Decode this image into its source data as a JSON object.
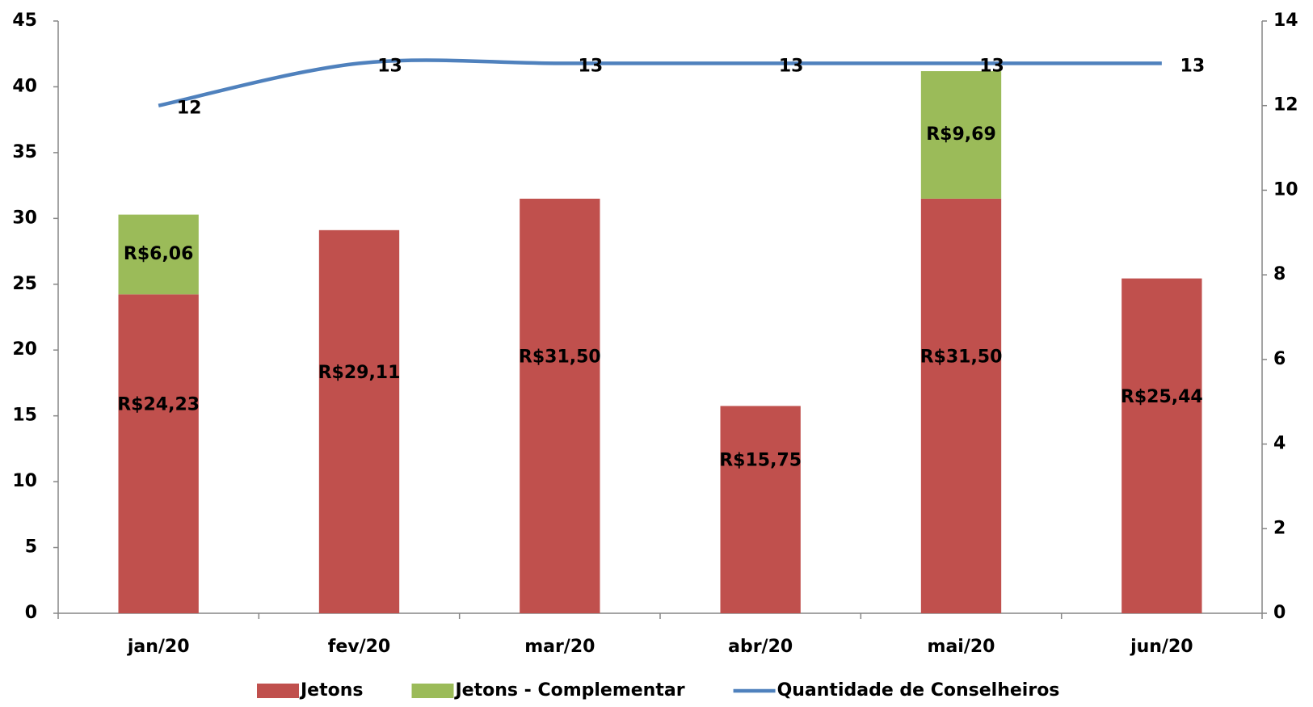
{
  "chart_data": {
    "type": "bar_line",
    "categories": [
      "jan/20",
      "fev/20",
      "mar/20",
      "abr/20",
      "mai/20",
      "jun/20"
    ],
    "series": [
      {
        "name": "Jetons",
        "color": "#c0504d",
        "kind": "bar",
        "values": [
          24.23,
          29.11,
          31.5,
          15.75,
          31.5,
          25.44
        ],
        "value_labels": [
          "R$24,23",
          "R$29,11",
          "R$31,50",
          "R$15,75",
          "R$31,50",
          "R$25,44"
        ]
      },
      {
        "name": "Jetons - Complementar",
        "color": "#9bbb59",
        "kind": "bar",
        "values": [
          6.06,
          null,
          null,
          null,
          9.69,
          null
        ],
        "value_labels": [
          "R$6,06",
          null,
          null,
          null,
          "R$9,69",
          null
        ]
      },
      {
        "name": "Quantidade de Conselheiros",
        "color": "#4f81bd",
        "kind": "line",
        "axis": "y2",
        "values": [
          12,
          13,
          13,
          13,
          13,
          13
        ]
      }
    ],
    "ylim": [
      0,
      45
    ],
    "yticks": [
      0,
      5,
      10,
      15,
      20,
      25,
      30,
      35,
      40,
      45
    ],
    "y2lim": [
      0,
      14
    ],
    "y2ticks": [
      0,
      2,
      4,
      6,
      8,
      10,
      12,
      14
    ],
    "stacked": true,
    "legend": "bottom"
  }
}
